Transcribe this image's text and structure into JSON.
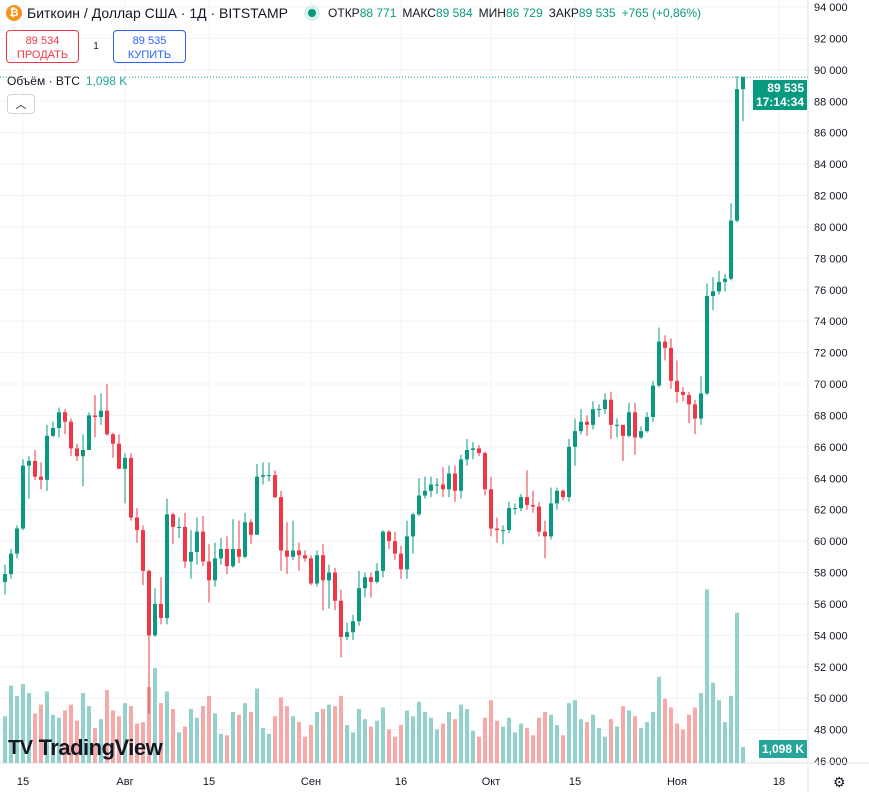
{
  "header": {
    "symbol_icon": "bitcoin-icon",
    "title": "Биткоин / Доллар США · 1Д · BITSTAMP",
    "market_status": "open",
    "ohlc": [
      {
        "label": "ОТКР",
        "value": "88 771"
      },
      {
        "label": "МАКС",
        "value": "89 584"
      },
      {
        "label": "МИН",
        "value": "86 729"
      },
      {
        "label": "ЗАКР",
        "value": "89 535"
      },
      {
        "label": "",
        "value": "+765 (+0,86%)"
      }
    ]
  },
  "trade": {
    "sell_price": "89 534",
    "sell_label": "ПРОДАТЬ",
    "spread": "1",
    "buy_price": "89 535",
    "buy_label": "КУПИТЬ"
  },
  "volume_legend": {
    "label": "Объём · BTC",
    "value": "1,098 K"
  },
  "price_tag": {
    "price": "89 535",
    "countdown": "17:14:34"
  },
  "volume_tag": "1,098 K",
  "logo": "TradingView",
  "colors": {
    "up": "#089981",
    "down": "#f23645",
    "vol_up": "#92d2cc",
    "vol_down": "#f7a9a7"
  },
  "chart_data": {
    "type": "candlestick",
    "interval": "1D",
    "first": "2024-07-12",
    "y_ticks": [
      "94 000",
      "92 000",
      "90 000",
      "88 000",
      "86 000",
      "84 000",
      "82 000",
      "80 000",
      "78 000",
      "76 000",
      "74 000",
      "72 000",
      "70 000",
      "68 000",
      "66 000",
      "64 000",
      "62 000",
      "60 000",
      "58 000",
      "56 000",
      "54 000",
      "52 000",
      "50 000",
      "48 000",
      "46 000"
    ],
    "ylim": [
      46000,
      94000
    ],
    "x_ticks": [
      {
        "label": "15",
        "date": "2024-07-15"
      },
      {
        "label": "Авг",
        "date": "2024-08-01"
      },
      {
        "label": "15",
        "date": "2024-08-15"
      },
      {
        "label": "Сен",
        "date": "2024-09-01"
      },
      {
        "label": "16",
        "date": "2024-09-16"
      },
      {
        "label": "Окт",
        "date": "2024-10-01"
      },
      {
        "label": "15",
        "date": "2024-10-15"
      },
      {
        "label": "Ноя",
        "date": "2024-11-01"
      },
      {
        "label": "18",
        "date": "2024-11-18"
      }
    ],
    "first_open": 57400,
    "close": [
      57900,
      59200,
      60800,
      64800,
      65100,
      64100,
      63900,
      66700,
      67200,
      68200,
      67600,
      65900,
      65400,
      65800,
      68000,
      67900,
      68300,
      66800,
      66200,
      64600,
      65300,
      61500,
      60700,
      58100,
      54000,
      56000,
      55100,
      61700,
      60900,
      60900,
      58700,
      59300,
      60600,
      58700,
      57500,
      58900,
      59500,
      58400,
      59500,
      59000,
      61200,
      60400,
      64100,
      64200,
      64200,
      62800,
      59400,
      59000,
      59400,
      59100,
      58900,
      57300,
      59100,
      57500,
      58000,
      56200,
      53900,
      54200,
      54900,
      57000,
      57700,
      57400,
      58100,
      60600,
      60000,
      59200,
      58200,
      60300,
      61700,
      62900,
      63200,
      63600,
      63600,
      63300,
      64300,
      63200,
      65200,
      65800,
      65900,
      65600,
      63300,
      60800,
      60700,
      60700,
      62100,
      62100,
      62800,
      62300,
      62200,
      60600,
      60300,
      62400,
      63200,
      62800,
      66000,
      67000,
      67600,
      67400,
      68400,
      68400,
      69000,
      67400,
      67400,
      66700,
      68200,
      66600,
      67000,
      67900,
      69900,
      72700,
      72300,
      70200,
      69500,
      69300,
      68700,
      67800,
      69400,
      75600,
      75900,
      76500,
      76700,
      80400,
      88771,
      89535
    ],
    "high": [
      58500,
      59500,
      61000,
      65200,
      65400,
      65800,
      65000,
      67400,
      67600,
      68500,
      68400,
      67800,
      66200,
      66800,
      68200,
      69300,
      69400,
      70000,
      66900,
      66800,
      65600,
      65600,
      62100,
      61000,
      58200,
      57000,
      57700,
      62700,
      61800,
      61500,
      61800,
      60700,
      61500,
      61600,
      59800,
      59900,
      60200,
      60300,
      61400,
      61300,
      61800,
      61400,
      64900,
      65000,
      65000,
      64500,
      63200,
      61200,
      61300,
      59900,
      59400,
      59100,
      59400,
      59800,
      58500,
      58300,
      56900,
      54800,
      55300,
      58100,
      58000,
      58000,
      58600,
      60700,
      60700,
      60600,
      59700,
      61300,
      61800,
      64000,
      64100,
      64100,
      64000,
      64700,
      64800,
      64800,
      65500,
      66500,
      66300,
      66100,
      65700,
      64100,
      61500,
      61000,
      62500,
      62400,
      63000,
      64500,
      63200,
      62500,
      61300,
      63400,
      63400,
      63300,
      66500,
      67800,
      68400,
      68000,
      68900,
      68700,
      69400,
      69500,
      67800,
      67200,
      68800,
      68800,
      67300,
      68200,
      70200,
      73600,
      73100,
      72900,
      71500,
      69800,
      69500,
      69000,
      70500,
      76400,
      76800,
      77200,
      77000,
      81500,
      89600,
      89584
    ],
    "low": [
      56600,
      57600,
      58900,
      60700,
      62700,
      63900,
      63300,
      63200,
      66600,
      66600,
      66800,
      65400,
      65100,
      63500,
      65800,
      66600,
      67400,
      66700,
      65300,
      64600,
      62400,
      61300,
      59900,
      57200,
      49000,
      53900,
      54700,
      54700,
      59800,
      60200,
      58300,
      57600,
      58500,
      58400,
      56100,
      57100,
      58500,
      57900,
      58300,
      58600,
      58900,
      59800,
      60400,
      63600,
      63800,
      62700,
      58100,
      57900,
      58800,
      58100,
      58700,
      57200,
      57100,
      55600,
      55700,
      55600,
      52600,
      53700,
      53700,
      54600,
      56400,
      56400,
      57300,
      57700,
      59500,
      58800,
      57600,
      57600,
      59200,
      61600,
      62700,
      62800,
      63000,
      62800,
      62800,
      62500,
      62700,
      64800,
      65200,
      65400,
      62900,
      60300,
      59900,
      59800,
      60500,
      61700,
      61900,
      62000,
      61800,
      60300,
      58900,
      60100,
      62000,
      62600,
      62500,
      64800,
      66800,
      66700,
      67100,
      67900,
      68100,
      66500,
      66600,
      65100,
      66600,
      65500,
      66500,
      66900,
      67600,
      69800,
      71500,
      69700,
      68800,
      68900,
      67500,
      66800,
      67400,
      69300,
      74700,
      75700,
      75900,
      76600,
      80300,
      86729
    ],
    "volume_k": [
      3.2,
      5.3,
      4.6,
      5.4,
      4.8,
      3.4,
      4.0,
      4.9,
      3.3,
      3.1,
      3.6,
      4.0,
      2.9,
      4.8,
      3.9,
      2.4,
      3.0,
      5.0,
      3.6,
      3.2,
      4.1,
      3.9,
      2.7,
      2.8,
      5.2,
      6.5,
      4.1,
      4.9,
      3.7,
      2.1,
      2.5,
      3.7,
      3.1,
      3.9,
      4.6,
      3.4,
      2.0,
      1.9,
      3.5,
      3.3,
      4.1,
      3.5,
      5.1,
      2.4,
      2.0,
      3.2,
      4.5,
      3.9,
      3.2,
      2.8,
      1.8,
      2.6,
      3.5,
      3.7,
      4.0,
      3.9,
      4.6,
      2.6,
      2.1,
      3.7,
      3.0,
      2.5,
      2.9,
      3.8,
      2.3,
      1.8,
      2.6,
      3.6,
      3.2,
      4.2,
      3.5,
      3.1,
      2.3,
      2.7,
      3.5,
      3.0,
      4.0,
      3.7,
      2.2,
      1.8,
      3.1,
      4.3,
      2.9,
      2.5,
      3.1,
      2.1,
      2.7,
      2.4,
      1.9,
      3.1,
      3.5,
      3.3,
      2.6,
      1.9,
      4.1,
      4.3,
      3.0,
      2.8,
      3.3,
      2.4,
      1.8,
      3.0,
      2.5,
      3.9,
      3.6,
      3.2,
      2.4,
      2.8,
      3.5,
      5.9,
      4.4,
      3.8,
      2.7,
      2.3,
      3.3,
      3.8,
      4.8,
      11.9,
      5.5,
      4.3,
      2.8,
      4.6,
      10.3,
      1.098
    ]
  }
}
